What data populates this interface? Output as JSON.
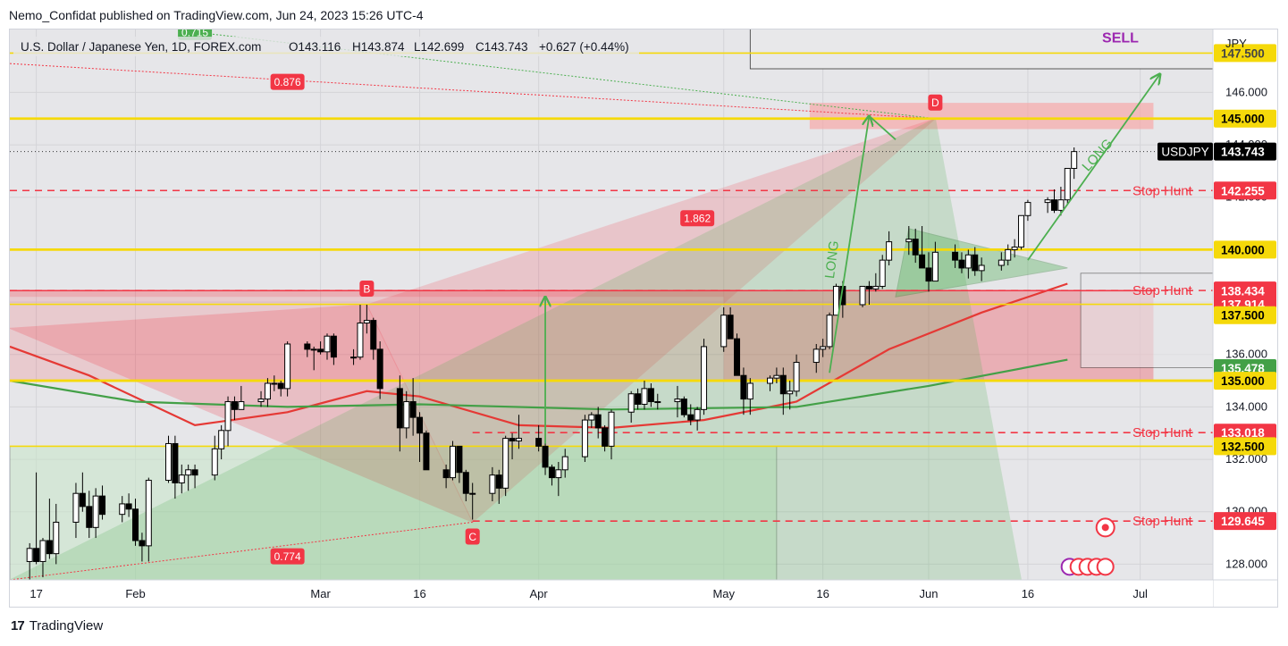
{
  "publisher_line": "Nemo_Confidat published on TradingView.com, Jun 24, 2023 15:26 UTC-4",
  "footer_brand": "TradingView",
  "legend": {
    "symbol": "U.S. Dollar / Japanese Yen, 1D, FOREX.com",
    "open": "O143.116",
    "high": "H143.874",
    "low": "L142.699",
    "close": "C143.743",
    "change": "+0.627 (+0.44%)"
  },
  "colors": {
    "up": "#ffffff",
    "down": "#000000",
    "yellow": "#f5d90a",
    "red": "#f23645",
    "green": "#4caf50",
    "ma_red": "#e53935",
    "ma_green": "#43a047",
    "sell": "#9c27b0"
  },
  "chart_data": {
    "type": "candlestick",
    "currency": "JPY",
    "ticker": "USDJPY",
    "last_price": "143.743",
    "ylim": [
      127.4,
      148.4
    ],
    "y_ticks": [
      "128.000",
      "130.000",
      "132.000",
      "134.000",
      "136.000",
      "138.000",
      "140.000",
      "142.000",
      "144.000",
      "146.000",
      "147.500"
    ],
    "x_ticks": [
      {
        "label": "17",
        "date": "2023-01-17"
      },
      {
        "label": "Feb",
        "date": "2023-02-01"
      },
      {
        "label": "Mar",
        "date": "2023-03-01"
      },
      {
        "label": "16",
        "date": "2023-03-16"
      },
      {
        "label": "Apr",
        "date": "2023-04-03"
      },
      {
        "label": "May",
        "date": "2023-05-01"
      },
      {
        "label": "16",
        "date": "2023-05-16"
      },
      {
        "label": "Jun",
        "date": "2023-06-01"
      },
      {
        "label": "16",
        "date": "2023-06-16"
      },
      {
        "label": "Jul",
        "date": "2023-07-03"
      }
    ],
    "candles": [
      [
        "2023-01-16",
        128.1,
        128.8,
        127.2,
        128.6
      ],
      [
        "2023-01-17",
        128.6,
        131.5,
        128.0,
        128.1
      ],
      [
        "2023-01-18",
        128.1,
        129.0,
        127.5,
        128.9
      ],
      [
        "2023-01-19",
        128.9,
        130.5,
        128.2,
        128.4
      ],
      [
        "2023-01-20",
        128.4,
        130.3,
        128.0,
        129.6
      ],
      [
        "2023-01-23",
        129.6,
        131.1,
        129.0,
        130.7
      ],
      [
        "2023-01-24",
        130.7,
        131.5,
        130.0,
        130.2
      ],
      [
        "2023-01-25",
        130.2,
        130.8,
        129.0,
        129.4
      ],
      [
        "2023-01-26",
        129.4,
        130.9,
        129.0,
        130.6
      ],
      [
        "2023-01-27",
        130.6,
        131.0,
        129.7,
        129.9
      ],
      [
        "2023-01-30",
        129.9,
        130.6,
        129.6,
        130.3
      ],
      [
        "2023-01-31",
        130.3,
        130.7,
        129.8,
        130.1
      ],
      [
        "2023-02-01",
        130.1,
        130.5,
        128.7,
        128.9
      ],
      [
        "2023-02-02",
        128.9,
        129.2,
        128.1,
        128.7
      ],
      [
        "2023-02-03",
        128.7,
        131.3,
        128.1,
        131.2
      ],
      [
        "2023-02-06",
        131.2,
        132.9,
        131.1,
        132.6
      ],
      [
        "2023-02-07",
        132.6,
        132.9,
        130.5,
        131.1
      ],
      [
        "2023-02-08",
        131.1,
        131.8,
        130.7,
        131.4
      ],
      [
        "2023-02-09",
        131.4,
        131.8,
        130.8,
        131.6
      ],
      [
        "2023-02-10",
        131.6,
        131.8,
        130.9,
        131.4
      ],
      [
        "2023-02-13",
        131.4,
        132.9,
        131.2,
        132.4
      ],
      [
        "2023-02-14",
        132.4,
        133.3,
        132.0,
        133.1
      ],
      [
        "2023-02-15",
        133.1,
        134.4,
        132.5,
        134.2
      ],
      [
        "2023-02-16",
        134.2,
        134.4,
        133.5,
        133.9
      ],
      [
        "2023-02-17",
        133.9,
        134.8,
        133.9,
        134.2
      ],
      [
        "2023-02-20",
        134.2,
        134.6,
        134.0,
        134.3
      ],
      [
        "2023-02-21",
        134.3,
        135.1,
        134.0,
        134.9
      ],
      [
        "2023-02-22",
        134.9,
        135.2,
        134.6,
        134.9
      ],
      [
        "2023-02-23",
        134.9,
        135.0,
        134.4,
        134.7
      ],
      [
        "2023-02-24",
        134.7,
        136.5,
        134.4,
        136.4
      ],
      [
        "2023-02-27",
        136.4,
        136.5,
        135.9,
        136.2
      ],
      [
        "2023-02-28",
        136.2,
        136.3,
        135.4,
        136.2
      ],
      [
        "2023-03-01",
        136.2,
        136.5,
        136.0,
        136.1
      ],
      [
        "2023-03-02",
        136.1,
        136.8,
        135.8,
        136.7
      ],
      [
        "2023-03-03",
        136.7,
        136.8,
        135.6,
        135.9
      ],
      [
        "2023-03-06",
        135.9,
        136.2,
        135.6,
        135.9
      ],
      [
        "2023-03-07",
        135.9,
        137.9,
        135.8,
        137.2
      ],
      [
        "2023-03-08",
        137.2,
        137.9,
        136.8,
        137.3
      ],
      [
        "2023-03-09",
        137.3,
        137.4,
        135.8,
        136.2
      ],
      [
        "2023-03-10",
        136.2,
        136.5,
        134.3,
        134.7
      ],
      [
        "2023-03-13",
        134.7,
        135.2,
        132.3,
        133.2
      ],
      [
        "2023-03-14",
        133.2,
        134.6,
        132.8,
        134.2
      ],
      [
        "2023-03-15",
        134.2,
        135.1,
        132.9,
        133.6
      ],
      [
        "2023-03-16",
        133.6,
        133.8,
        131.9,
        133.0
      ],
      [
        "2023-03-17",
        133.0,
        133.1,
        131.6,
        131.6
      ],
      [
        "2023-03-20",
        131.6,
        131.8,
        130.9,
        131.3
      ],
      [
        "2023-03-21",
        131.3,
        132.7,
        131.2,
        132.5
      ],
      [
        "2023-03-22",
        132.5,
        132.5,
        131.1,
        131.5
      ],
      [
        "2023-03-23",
        131.5,
        131.6,
        130.4,
        130.7
      ],
      [
        "2023-03-24",
        130.7,
        131.1,
        129.7,
        130.7
      ],
      [
        "2023-03-27",
        130.7,
        131.7,
        130.4,
        131.4
      ],
      [
        "2023-03-28",
        131.4,
        131.6,
        130.3,
        130.9
      ],
      [
        "2023-03-29",
        130.9,
        132.9,
        130.6,
        132.8
      ],
      [
        "2023-03-30",
        132.8,
        133.0,
        132.0,
        132.7
      ],
      [
        "2023-03-31",
        132.7,
        133.7,
        132.4,
        132.8
      ],
      [
        "2023-04-03",
        132.8,
        133.3,
        132.3,
        132.5
      ],
      [
        "2023-04-04",
        132.5,
        132.7,
        131.4,
        131.7
      ],
      [
        "2023-04-05",
        131.7,
        131.8,
        131.0,
        131.3
      ],
      [
        "2023-04-06",
        131.3,
        131.9,
        130.6,
        131.6
      ],
      [
        "2023-04-07",
        131.6,
        132.4,
        131.3,
        132.1
      ],
      [
        "2023-04-10",
        132.1,
        133.7,
        131.9,
        133.5
      ],
      [
        "2023-04-11",
        133.5,
        133.8,
        133.2,
        133.7
      ],
      [
        "2023-04-12",
        133.7,
        134.0,
        132.8,
        133.2
      ],
      [
        "2023-04-13",
        133.2,
        133.3,
        132.3,
        132.5
      ],
      [
        "2023-04-14",
        132.5,
        133.9,
        132.0,
        133.8
      ],
      [
        "2023-04-17",
        133.8,
        134.6,
        133.4,
        134.5
      ],
      [
        "2023-04-18",
        134.5,
        134.7,
        133.9,
        134.1
      ],
      [
        "2023-04-19",
        134.1,
        135.0,
        133.9,
        134.7
      ],
      [
        "2023-04-20",
        134.7,
        134.9,
        134.0,
        134.2
      ],
      [
        "2023-04-21",
        134.2,
        134.5,
        133.9,
        134.2
      ],
      [
        "2023-04-24",
        134.2,
        134.8,
        133.6,
        134.3
      ],
      [
        "2023-04-25",
        134.3,
        134.4,
        133.6,
        133.7
      ],
      [
        "2023-04-26",
        133.7,
        134.1,
        133.3,
        133.5
      ],
      [
        "2023-04-27",
        133.5,
        134.0,
        133.1,
        133.9
      ],
      [
        "2023-04-28",
        133.9,
        136.6,
        133.7,
        136.3
      ],
      [
        "2023-05-01",
        136.3,
        137.8,
        136.1,
        137.5
      ],
      [
        "2023-05-02",
        137.5,
        137.8,
        136.6,
        136.6
      ],
      [
        "2023-05-03",
        136.6,
        136.8,
        135.2,
        135.2
      ],
      [
        "2023-05-04",
        135.2,
        135.5,
        133.7,
        134.3
      ],
      [
        "2023-05-05",
        134.3,
        135.1,
        133.7,
        134.9
      ],
      [
        "2023-05-08",
        134.9,
        135.2,
        134.6,
        135.1
      ],
      [
        "2023-05-09",
        135.1,
        135.5,
        134.9,
        135.2
      ],
      [
        "2023-05-10",
        135.2,
        135.5,
        133.7,
        134.5
      ],
      [
        "2023-05-11",
        134.5,
        135.0,
        133.9,
        134.6
      ],
      [
        "2023-05-12",
        134.6,
        136.0,
        134.4,
        135.7
      ],
      [
        "2023-05-15",
        135.7,
        136.4,
        135.3,
        136.2
      ],
      [
        "2023-05-16",
        136.2,
        136.6,
        135.9,
        136.3
      ],
      [
        "2023-05-17",
        136.3,
        137.6,
        136.2,
        137.5
      ],
      [
        "2023-05-18",
        137.5,
        138.7,
        137.5,
        138.6
      ],
      [
        "2023-05-19",
        138.6,
        138.8,
        137.4,
        137.9
      ],
      [
        "2023-05-22",
        137.9,
        138.5,
        137.8,
        138.6
      ],
      [
        "2023-05-23",
        138.6,
        138.8,
        137.9,
        138.5
      ],
      [
        "2023-05-24",
        138.5,
        139.1,
        138.4,
        138.6
      ],
      [
        "2023-05-25",
        138.6,
        139.8,
        138.5,
        139.6
      ],
      [
        "2023-05-26",
        139.6,
        140.7,
        139.4,
        140.3
      ],
      [
        "2023-05-29",
        140.3,
        140.9,
        139.8,
        140.4
      ],
      [
        "2023-05-30",
        140.4,
        140.8,
        139.5,
        139.8
      ],
      [
        "2023-05-31",
        139.8,
        140.9,
        139.5,
        139.3
      ],
      [
        "2023-06-01",
        139.3,
        139.9,
        138.4,
        138.8
      ],
      [
        "2023-06-02",
        138.8,
        140.3,
        138.8,
        139.9
      ],
      [
        "2023-06-05",
        139.9,
        140.2,
        139.3,
        139.6
      ],
      [
        "2023-06-06",
        139.6,
        139.9,
        139.1,
        139.3
      ],
      [
        "2023-06-07",
        139.3,
        140.0,
        138.9,
        139.8
      ],
      [
        "2023-06-08",
        139.8,
        140.1,
        139.0,
        139.2
      ],
      [
        "2023-06-09",
        139.2,
        139.7,
        138.8,
        139.4
      ],
      [
        "2023-06-12",
        139.4,
        139.9,
        139.2,
        139.6
      ],
      [
        "2023-06-13",
        139.6,
        140.2,
        139.4,
        140.0
      ],
      [
        "2023-06-14",
        140.0,
        140.4,
        139.7,
        140.1
      ],
      [
        "2023-06-15",
        140.1,
        141.3,
        140.0,
        141.3
      ],
      [
        "2023-06-16",
        141.3,
        141.9,
        141.1,
        141.8
      ],
      [
        "2023-06-19",
        141.8,
        142.0,
        141.4,
        141.9
      ],
      [
        "2023-06-20",
        141.9,
        142.3,
        141.4,
        141.5
      ],
      [
        "2023-06-21",
        141.5,
        142.4,
        141.3,
        141.9
      ],
      [
        "2023-06-22",
        141.9,
        143.1,
        141.7,
        143.1
      ],
      [
        "2023-06-23",
        143.1,
        143.9,
        142.7,
        143.743
      ]
    ],
    "horizontal_levels": [
      {
        "label": "147.500",
        "value": 147.5,
        "style": "yellow"
      },
      {
        "label": "145.000",
        "value": 145.0,
        "style": "yellow-thick"
      },
      {
        "label": "142.255",
        "value": 142.255,
        "style": "red-dashed",
        "note": "Stop Hunt"
      },
      {
        "label": "140.000",
        "value": 140.0,
        "style": "yellow-thick"
      },
      {
        "label": "138.441",
        "value": 138.441,
        "style": "red-dashed",
        "note": "Stop Hunt"
      },
      {
        "label": "138.434",
        "value": 138.434,
        "style": "red"
      },
      {
        "label": "137.914",
        "value": 137.914,
        "style": "yellow"
      },
      {
        "label": "137.500",
        "value": 137.5,
        "style": "none"
      },
      {
        "label": "135.478",
        "value": 135.478,
        "style": "none"
      },
      {
        "label": "135.000",
        "value": 135.0,
        "style": "yellow-thick"
      },
      {
        "label": "133.018",
        "value": 133.018,
        "style": "red-dashed",
        "note": "Stop Hunt"
      },
      {
        "label": "132.500",
        "value": 132.5,
        "style": "yellow"
      },
      {
        "label": "129.645",
        "value": 129.645,
        "style": "red-dashed",
        "note": "Stop Hunt"
      }
    ],
    "pattern_points": [
      {
        "label": "B",
        "date": "2023-03-08",
        "value": 137.9
      },
      {
        "label": "C",
        "date": "2023-03-24",
        "value": 129.6
      },
      {
        "label": "D",
        "date": "2023-06-02",
        "value": 145.0
      }
    ],
    "ratios": [
      {
        "label": "0.715",
        "date": "2023-02-10",
        "value": 148.3
      },
      {
        "label": "0.876",
        "date": "2023-02-24",
        "value": 146.4
      },
      {
        "label": "1.862",
        "date": "2023-04-27",
        "value": 141.2
      },
      {
        "label": "0.774",
        "date": "2023-02-24",
        "value": 128.3
      }
    ],
    "text_annotations": [
      {
        "label": "SELL",
        "date": "2023-06-30",
        "value": 147.9
      },
      {
        "label": "LONG",
        "date": "2023-05-18",
        "value": 139.6
      },
      {
        "label": "LONG",
        "date": "2023-06-27",
        "value": 143.5
      }
    ]
  }
}
